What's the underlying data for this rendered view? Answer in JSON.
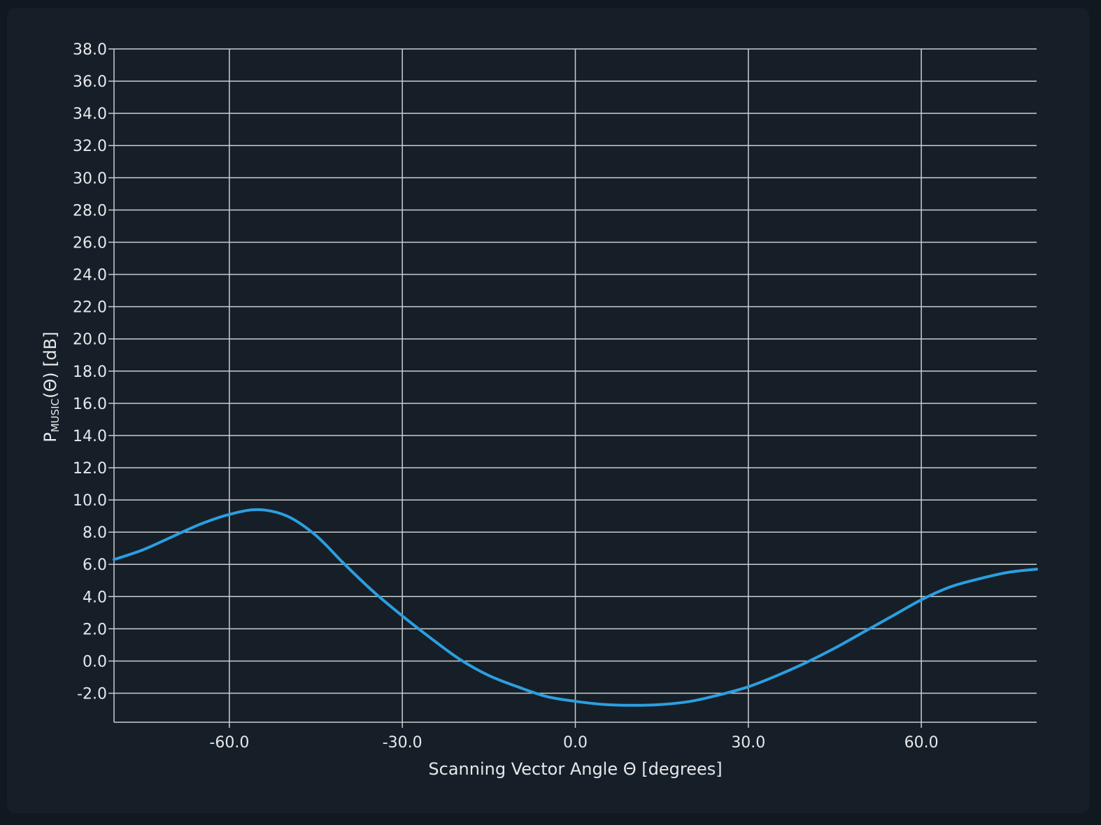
{
  "chart_data": {
    "type": "line",
    "xlabel": "Scanning Vector Angle Θ [degrees]",
    "ylabel": {
      "main": "P",
      "sub": "MUSIC",
      "rest": "(Θ) [dB]"
    },
    "xlim": [
      -80,
      80
    ],
    "ylim": [
      -3.8,
      38
    ],
    "x_ticks": [
      -60,
      -30,
      0,
      30,
      60
    ],
    "x_tick_labels": [
      "-60.0",
      "-30.0",
      "0.0",
      "30.0",
      "60.0"
    ],
    "y_ticks": [
      -2,
      0,
      2,
      4,
      6,
      8,
      10,
      12,
      14,
      16,
      18,
      20,
      22,
      24,
      26,
      28,
      30,
      32,
      34,
      36,
      38
    ],
    "y_tick_labels": [
      "-2.0",
      "0.0",
      "2.0",
      "4.0",
      "6.0",
      "8.0",
      "10.0",
      "12.0",
      "14.0",
      "16.0",
      "18.0",
      "20.0",
      "22.0",
      "24.0",
      "26.0",
      "28.0",
      "30.0",
      "32.0",
      "34.0",
      "36.0",
      "38.0"
    ],
    "grid": true,
    "series": [
      {
        "color": "#2b9fe0",
        "x": [
          -80,
          -75,
          -70,
          -65,
          -60,
          -55,
          -50,
          -45,
          -40,
          -35,
          -30,
          -25,
          -20,
          -15,
          -10,
          -5,
          0,
          5,
          10,
          15,
          20,
          25,
          30,
          35,
          40,
          45,
          50,
          55,
          60,
          65,
          70,
          75,
          80
        ],
        "y": [
          6.3,
          6.9,
          7.7,
          8.5,
          9.1,
          9.4,
          9.0,
          7.8,
          6.0,
          4.3,
          2.8,
          1.4,
          0.1,
          -0.9,
          -1.6,
          -2.2,
          -2.5,
          -2.7,
          -2.75,
          -2.7,
          -2.5,
          -2.1,
          -1.6,
          -0.9,
          -0.1,
          0.8,
          1.8,
          2.8,
          3.8,
          4.6,
          5.1,
          5.5,
          5.7
        ]
      }
    ]
  }
}
